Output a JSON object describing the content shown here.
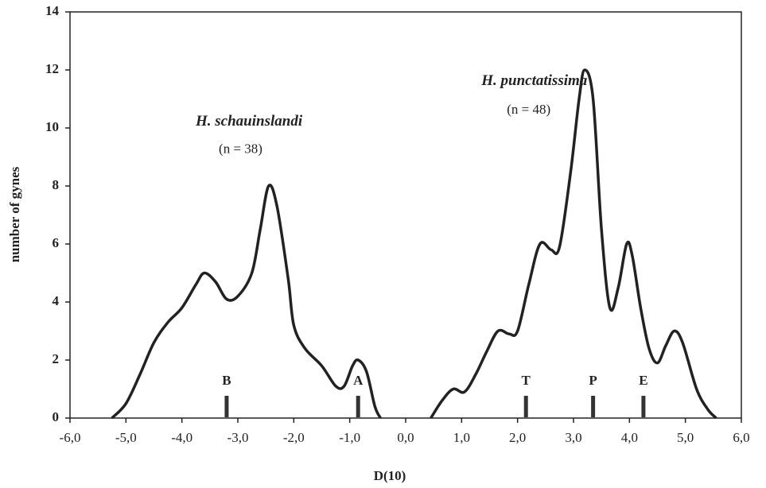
{
  "chart_data": {
    "type": "line",
    "x_label": "D(10)",
    "y_label": "number of gynes",
    "xlim": [
      -6,
      6
    ],
    "ylim": [
      0,
      14
    ],
    "xticks": [
      {
        "value": -6,
        "label": "-6,0"
      },
      {
        "value": -5,
        "label": "-5,0"
      },
      {
        "value": -4,
        "label": "-4,0"
      },
      {
        "value": -3,
        "label": "-3,0"
      },
      {
        "value": -2,
        "label": "-2,0"
      },
      {
        "value": -1,
        "label": "-1,0"
      },
      {
        "value": 0,
        "label": "0,0"
      },
      {
        "value": 1,
        "label": "1,0"
      },
      {
        "value": 2,
        "label": "2,0"
      },
      {
        "value": 3,
        "label": "3,0"
      },
      {
        "value": 4,
        "label": "4,0"
      },
      {
        "value": 5,
        "label": "5,0"
      },
      {
        "value": 6,
        "label": "6,0"
      }
    ],
    "yticks": [
      0,
      2,
      4,
      6,
      8,
      10,
      12,
      14
    ],
    "series": [
      {
        "color": "#222222",
        "x": [
          -5.25,
          -5.0,
          -4.75,
          -4.5,
          -4.25,
          -4.0,
          -3.75,
          -3.6,
          -3.4,
          -3.2,
          -3.0,
          -2.75,
          -2.6,
          -2.45,
          -2.3,
          -2.1,
          -2.0,
          -1.8,
          -1.5,
          -1.25,
          -1.1,
          -0.95,
          -0.85,
          -0.7,
          -0.55,
          -0.45
        ],
        "values": [
          0,
          0.5,
          1.5,
          2.6,
          3.3,
          3.8,
          4.6,
          5.0,
          4.7,
          4.1,
          4.2,
          5.0,
          6.5,
          8.0,
          7.3,
          4.8,
          3.2,
          2.4,
          1.8,
          1.1,
          1.1,
          1.8,
          2.0,
          1.6,
          0.4,
          0
        ]
      },
      {
        "color": "#222222",
        "x": [
          0.45,
          0.65,
          0.85,
          1.05,
          1.25,
          1.45,
          1.65,
          1.85,
          2.0,
          2.2,
          2.4,
          2.6,
          2.75,
          2.95,
          3.1,
          3.2,
          3.35,
          3.5,
          3.65,
          3.8,
          3.95,
          4.05,
          4.2,
          4.35,
          4.5,
          4.65,
          4.8,
          4.95,
          5.2,
          5.4,
          5.55
        ],
        "values": [
          0,
          0.6,
          1.0,
          0.9,
          1.5,
          2.3,
          3.0,
          2.9,
          3.0,
          4.6,
          6.0,
          5.8,
          5.9,
          8.5,
          11.0,
          12.0,
          11.0,
          6.5,
          3.8,
          4.5,
          6.0,
          5.6,
          3.8,
          2.4,
          1.9,
          2.5,
          3.0,
          2.6,
          1.0,
          0.3,
          0
        ]
      }
    ],
    "markers": [
      {
        "label": "B",
        "x": -3.2
      },
      {
        "label": "A",
        "x": -0.85
      },
      {
        "label": "T",
        "x": 2.15
      },
      {
        "label": "P",
        "x": 3.35
      },
      {
        "label": "E",
        "x": 4.25
      }
    ],
    "annotations": [
      {
        "text": "H. schauinslandi",
        "x": -2.8,
        "y": 10.2
      },
      {
        "text": "(n = 38)",
        "x": -2.95,
        "y": 9.25
      },
      {
        "text": "H. punctatissima",
        "x": 2.3,
        "y": 11.6
      },
      {
        "text": "(n = 48)",
        "x": 2.2,
        "y": 10.6
      }
    ]
  }
}
